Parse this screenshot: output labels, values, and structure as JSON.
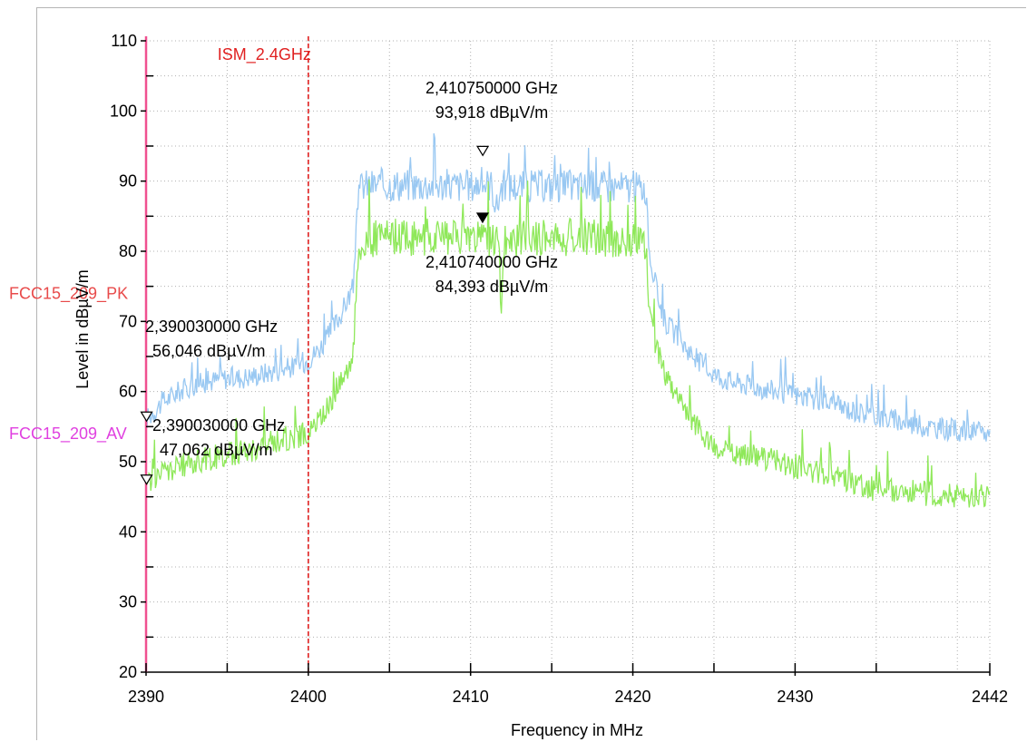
{
  "chart_data": {
    "type": "line",
    "title": "",
    "xlabel": "Frequency in MHz",
    "ylabel": "Level in dBµV/m",
    "xlim": [
      2390,
      2442
    ],
    "ylim": [
      20,
      110
    ],
    "x_ticks": [
      2390,
      2400,
      2410,
      2420,
      2430,
      2442
    ],
    "y_ticks": [
      20,
      30,
      40,
      50,
      60,
      70,
      80,
      90,
      100,
      110
    ],
    "grid": true,
    "series": [
      {
        "name": "",
        "color": "#99c8f2",
        "points": [
          [
            2390,
            56
          ],
          [
            2391,
            58.5
          ],
          [
            2392,
            60
          ],
          [
            2393,
            61
          ],
          [
            2394,
            61.5
          ],
          [
            2395,
            62
          ],
          [
            2396,
            62
          ],
          [
            2397,
            62.5
          ],
          [
            2398,
            63
          ],
          [
            2399,
            63.5
          ],
          [
            2400,
            64.5
          ],
          [
            2401,
            67
          ],
          [
            2402,
            71
          ],
          [
            2402.8,
            75
          ],
          [
            2403,
            87
          ],
          [
            2403.3,
            89.5
          ],
          [
            2405,
            89.5
          ],
          [
            2408,
            89.5
          ],
          [
            2410,
            89.3
          ],
          [
            2410.8,
            89.8
          ],
          [
            2411.3,
            89.5
          ],
          [
            2411.6,
            86
          ],
          [
            2411.9,
            89.3
          ],
          [
            2414,
            89.3
          ],
          [
            2417,
            89.3
          ],
          [
            2420,
            89.2
          ],
          [
            2420.8,
            89
          ],
          [
            2421,
            80
          ],
          [
            2421.5,
            74
          ],
          [
            2422,
            70
          ],
          [
            2423,
            67
          ],
          [
            2424,
            64.5
          ],
          [
            2425,
            62.5
          ],
          [
            2426,
            61.5
          ],
          [
            2428,
            60.5
          ],
          [
            2430,
            59.5
          ],
          [
            2432,
            58.3
          ],
          [
            2434,
            57
          ],
          [
            2436,
            56
          ],
          [
            2438,
            55
          ],
          [
            2440,
            54.5
          ],
          [
            2442,
            54
          ]
        ],
        "noise": 1.6
      },
      {
        "name": "",
        "color": "#8fe85a",
        "points": [
          [
            2390,
            47
          ],
          [
            2391,
            48.5
          ],
          [
            2393,
            50
          ],
          [
            2395,
            51
          ],
          [
            2397,
            52
          ],
          [
            2398,
            53
          ],
          [
            2399,
            53.5
          ],
          [
            2400,
            54
          ],
          [
            2401,
            57
          ],
          [
            2402,
            61.5
          ],
          [
            2402.8,
            65.5
          ],
          [
            2403,
            78
          ],
          [
            2403.3,
            81.5
          ],
          [
            2405,
            82
          ],
          [
            2408,
            82
          ],
          [
            2410,
            82
          ],
          [
            2411,
            82
          ],
          [
            2411.7,
            81
          ],
          [
            2411.9,
            73
          ],
          [
            2412.1,
            81.5
          ],
          [
            2414,
            82
          ],
          [
            2417,
            82
          ],
          [
            2420,
            81.5
          ],
          [
            2420.8,
            81.5
          ],
          [
            2421,
            71
          ],
          [
            2421.5,
            66
          ],
          [
            2422,
            62
          ],
          [
            2423,
            58
          ],
          [
            2424,
            55
          ],
          [
            2425,
            52
          ],
          [
            2427,
            51
          ],
          [
            2429,
            50
          ],
          [
            2431,
            48.8
          ],
          [
            2433,
            47.5
          ],
          [
            2434,
            46.5
          ],
          [
            2435,
            46
          ],
          [
            2438,
            45.5
          ],
          [
            2440,
            45.2
          ],
          [
            2442,
            45
          ]
        ],
        "noise": 1.8
      }
    ],
    "vertical_lines": [
      {
        "x": 2400,
        "label": "ISM_2.4GHz",
        "color": "#e02020",
        "style": "dashed"
      },
      {
        "x": 2390,
        "label": "",
        "color": "#f05090",
        "style": "solid"
      }
    ],
    "limit_labels": [
      {
        "label": "FCC15_209_PK",
        "y": 74,
        "color": "#e84a4a"
      },
      {
        "label": "FCC15_209_AV",
        "y": 54,
        "color": "#e040e0"
      }
    ],
    "markers": [
      {
        "x": 2410.75,
        "y": 93.918,
        "filled": false,
        "freq_text": "2,410750000 GHz",
        "level_text": "93,918 dBµV/m"
      },
      {
        "x": 2410.74,
        "y": 84.393,
        "filled": true,
        "freq_text": "2,410740000 GHz",
        "level_text": "84,393 dBµV/m"
      },
      {
        "x": 2390.03,
        "y": 56.046,
        "filled": false,
        "freq_text": "2,390030000 GHz",
        "level_text": "56,046 dBµV/m"
      },
      {
        "x": 2390.03,
        "y": 47.062,
        "filled": false,
        "freq_text": "2,390030000 GHz",
        "level_text": "47,062 dBµV/m"
      }
    ]
  }
}
